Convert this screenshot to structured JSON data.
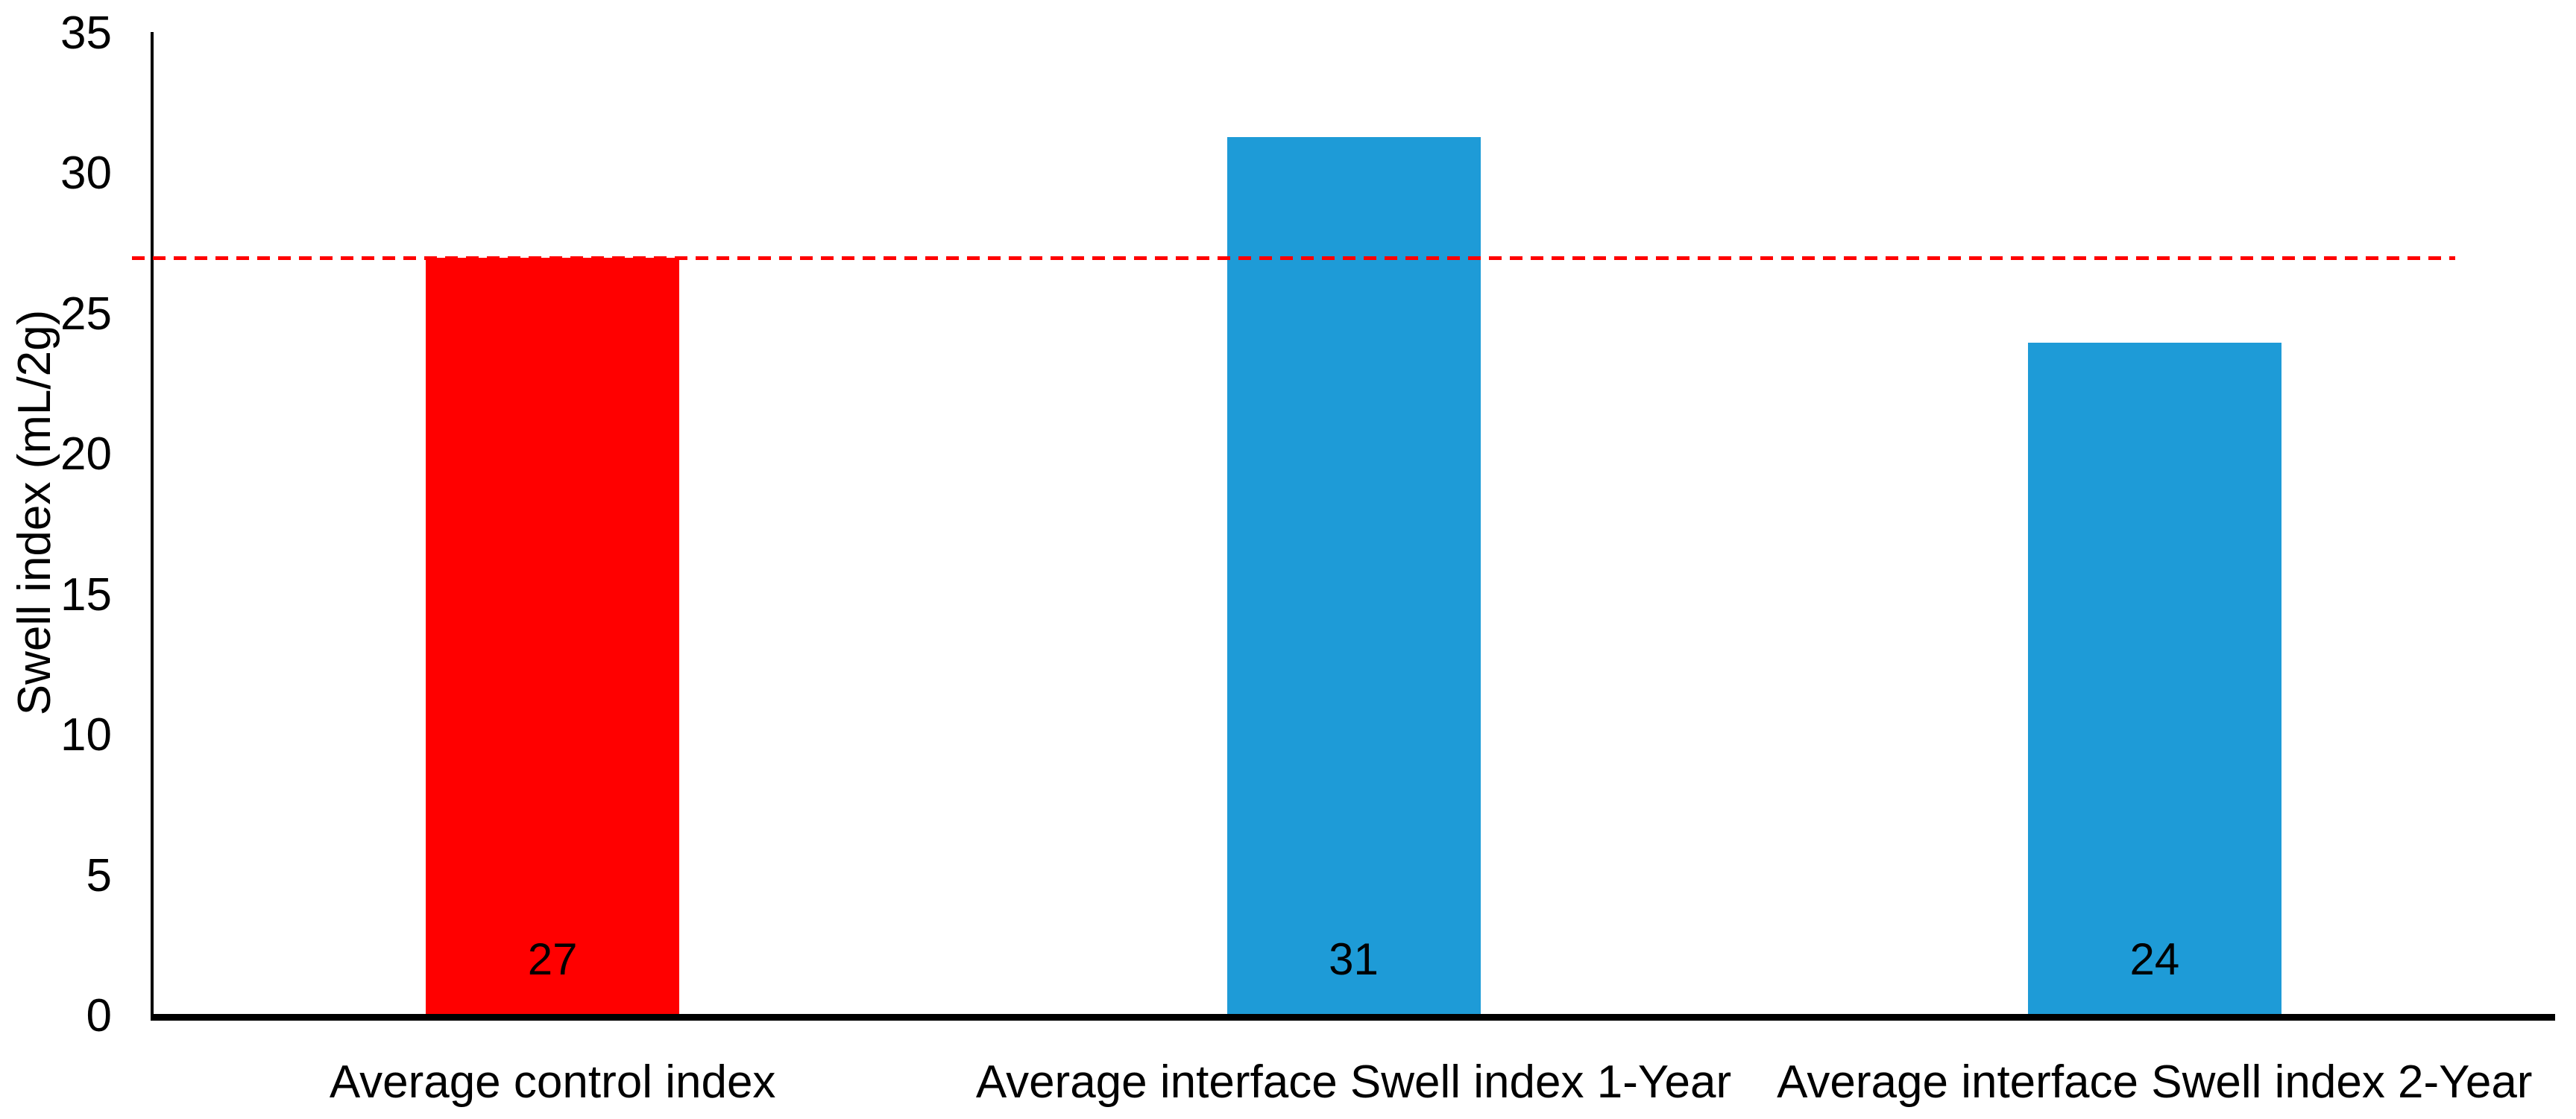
{
  "chart_data": {
    "type": "bar",
    "title": "",
    "xlabel": "",
    "ylabel": "Swell index (mL/2g)",
    "ylim": [
      0,
      35
    ],
    "yticks": [
      0,
      5,
      10,
      15,
      20,
      25,
      30,
      35
    ],
    "grid": false,
    "legend": false,
    "categories": [
      "Average control index",
      "Average interface Swell index 1-Year",
      "Average interface Swell index 2-Year"
    ],
    "values": [
      27,
      31.3,
      24
    ],
    "bar_labels": [
      "27",
      "31",
      "24"
    ],
    "bar_colors": [
      "#FF0000",
      "#1E9BD7",
      "#1E9BD7"
    ],
    "reference_line": {
      "value": 27,
      "color": "#FF0000",
      "style": "dashed"
    }
  },
  "colors": {
    "background": "#FFFFFF",
    "axis": "#000000",
    "text": "#000000",
    "control_bar": "#FF0000",
    "interface_bar": "#1E9BD7",
    "reference_line": "#FF0000"
  }
}
